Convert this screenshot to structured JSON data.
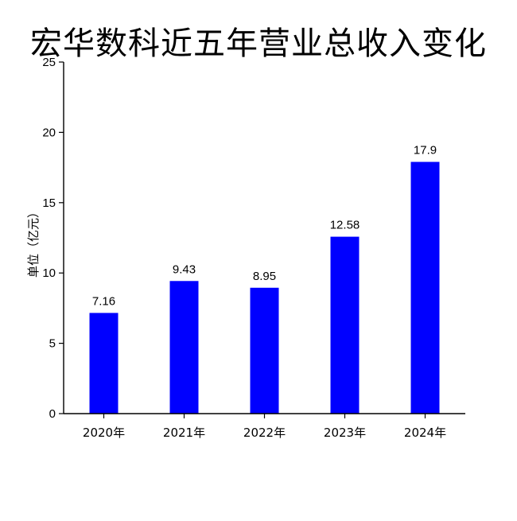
{
  "chart_data": {
    "type": "bar",
    "title": "宏华数科近五年营业总收入变化",
    "xlabel": "",
    "ylabel": "单位（亿元）",
    "categories": [
      "2020年",
      "2021年",
      "2022年",
      "2023年",
      "2024年"
    ],
    "values": [
      7.16,
      9.43,
      8.95,
      12.58,
      17.9
    ],
    "data_labels": [
      "7.16",
      "9.43",
      "8.95",
      "12.58",
      "17.9"
    ],
    "ylim": [
      0,
      25
    ],
    "yticks": [
      "0",
      "5",
      "10",
      "15",
      "20",
      "25"
    ],
    "grid": false,
    "legend": "none",
    "bar_color": "#0000ff",
    "axis_color": "#000000"
  }
}
